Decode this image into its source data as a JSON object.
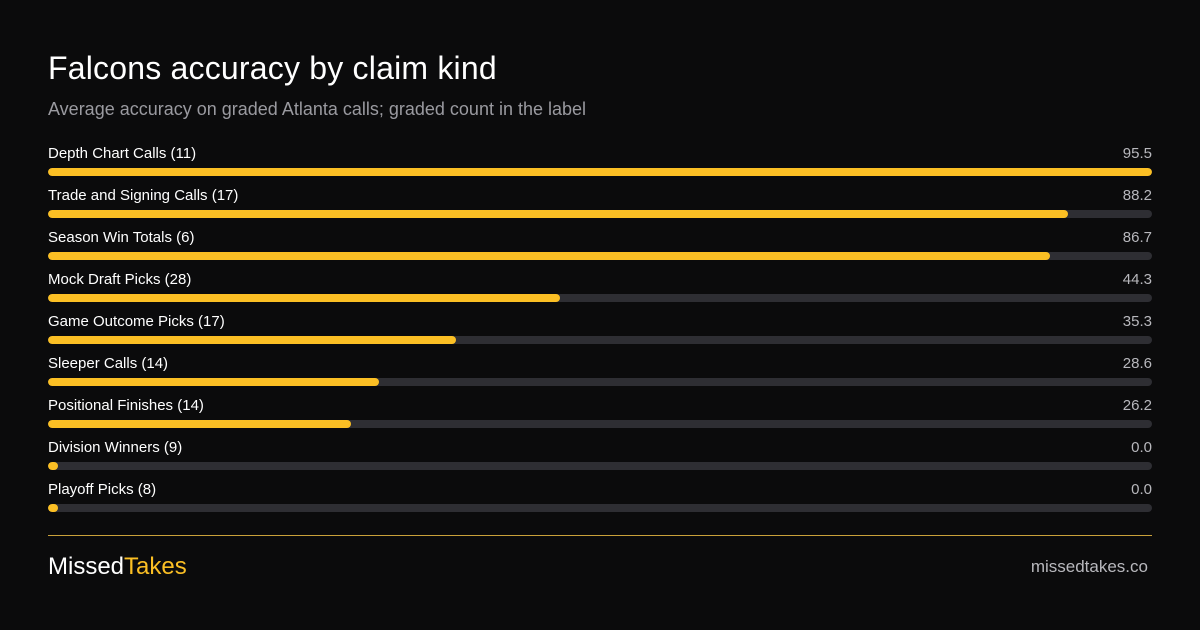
{
  "chart_data": {
    "type": "bar",
    "orientation": "horizontal",
    "title": "Falcons accuracy by claim kind",
    "subtitle": "Average accuracy on graded Atlanta calls; graded count in the label",
    "categories": [
      "Depth Chart Calls (11)",
      "Trade and Signing Calls (17)",
      "Season Win Totals (6)",
      "Mock Draft Picks (28)",
      "Game Outcome Picks (17)",
      "Sleeper Calls (14)",
      "Positional Finishes (14)",
      "Division Winners (9)",
      "Playoff Picks (8)"
    ],
    "values": [
      95.5,
      88.2,
      86.7,
      44.3,
      35.3,
      28.6,
      26.2,
      0.0,
      0.0
    ],
    "value_labels": [
      "95.5",
      "88.2",
      "86.7",
      "44.3",
      "35.3",
      "28.6",
      "26.2",
      "0.0",
      "0.0"
    ],
    "xlim": [
      0,
      95.5
    ],
    "grid": false,
    "colors": {
      "bar": "#fbbf24",
      "track": "#2e2e33",
      "background": "#0b0b0c"
    }
  },
  "footer": {
    "brand_part1": "Missed",
    "brand_part2": "Takes",
    "site": "missedtakes.co"
  }
}
